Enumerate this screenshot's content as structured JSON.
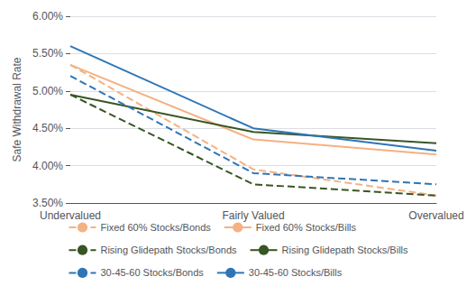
{
  "chart_data": {
    "type": "line",
    "categories": [
      "Undervalued",
      "Fairly Valued",
      "Overvalued"
    ],
    "series": [
      {
        "name": "Fixed 60% Stocks/Bonds",
        "values": [
          0.0535,
          0.0395,
          0.036
        ],
        "color": "#F4B183",
        "line_style": "dashed"
      },
      {
        "name": "Fixed 60% Stocks/Bills",
        "values": [
          0.0535,
          0.0435,
          0.0415
        ],
        "color": "#F4B183",
        "line_style": "solid"
      },
      {
        "name": "Rising Glidepath Stocks/Bonds",
        "values": [
          0.0495,
          0.0375,
          0.036
        ],
        "color": "#375623",
        "line_style": "dashed"
      },
      {
        "name": "Rising Glidepath Stocks/Bills",
        "values": [
          0.0495,
          0.0445,
          0.043
        ],
        "color": "#375623",
        "line_style": "solid"
      },
      {
        "name": "30-45-60 Stocks/Bonds",
        "values": [
          0.052,
          0.039,
          0.0375
        ],
        "color": "#2E75B6",
        "line_style": "dashed"
      },
      {
        "name": "30-45-60 Stocks/Bills",
        "values": [
          0.056,
          0.045,
          0.042
        ],
        "color": "#2E75B6",
        "line_style": "solid"
      }
    ],
    "ylabel": "Safe Withdrawal Rate",
    "ylim": [
      0.035,
      0.06
    ],
    "yticks": [
      {
        "value": 0.035,
        "label": "3.50%"
      },
      {
        "value": 0.04,
        "label": "4.00%"
      },
      {
        "value": 0.045,
        "label": "4.50%"
      },
      {
        "value": 0.05,
        "label": "5.00%"
      },
      {
        "value": 0.055,
        "label": "5.50%"
      },
      {
        "value": 0.06,
        "label": "6.00%"
      }
    ],
    "grid": true,
    "legend": "bottom"
  }
}
